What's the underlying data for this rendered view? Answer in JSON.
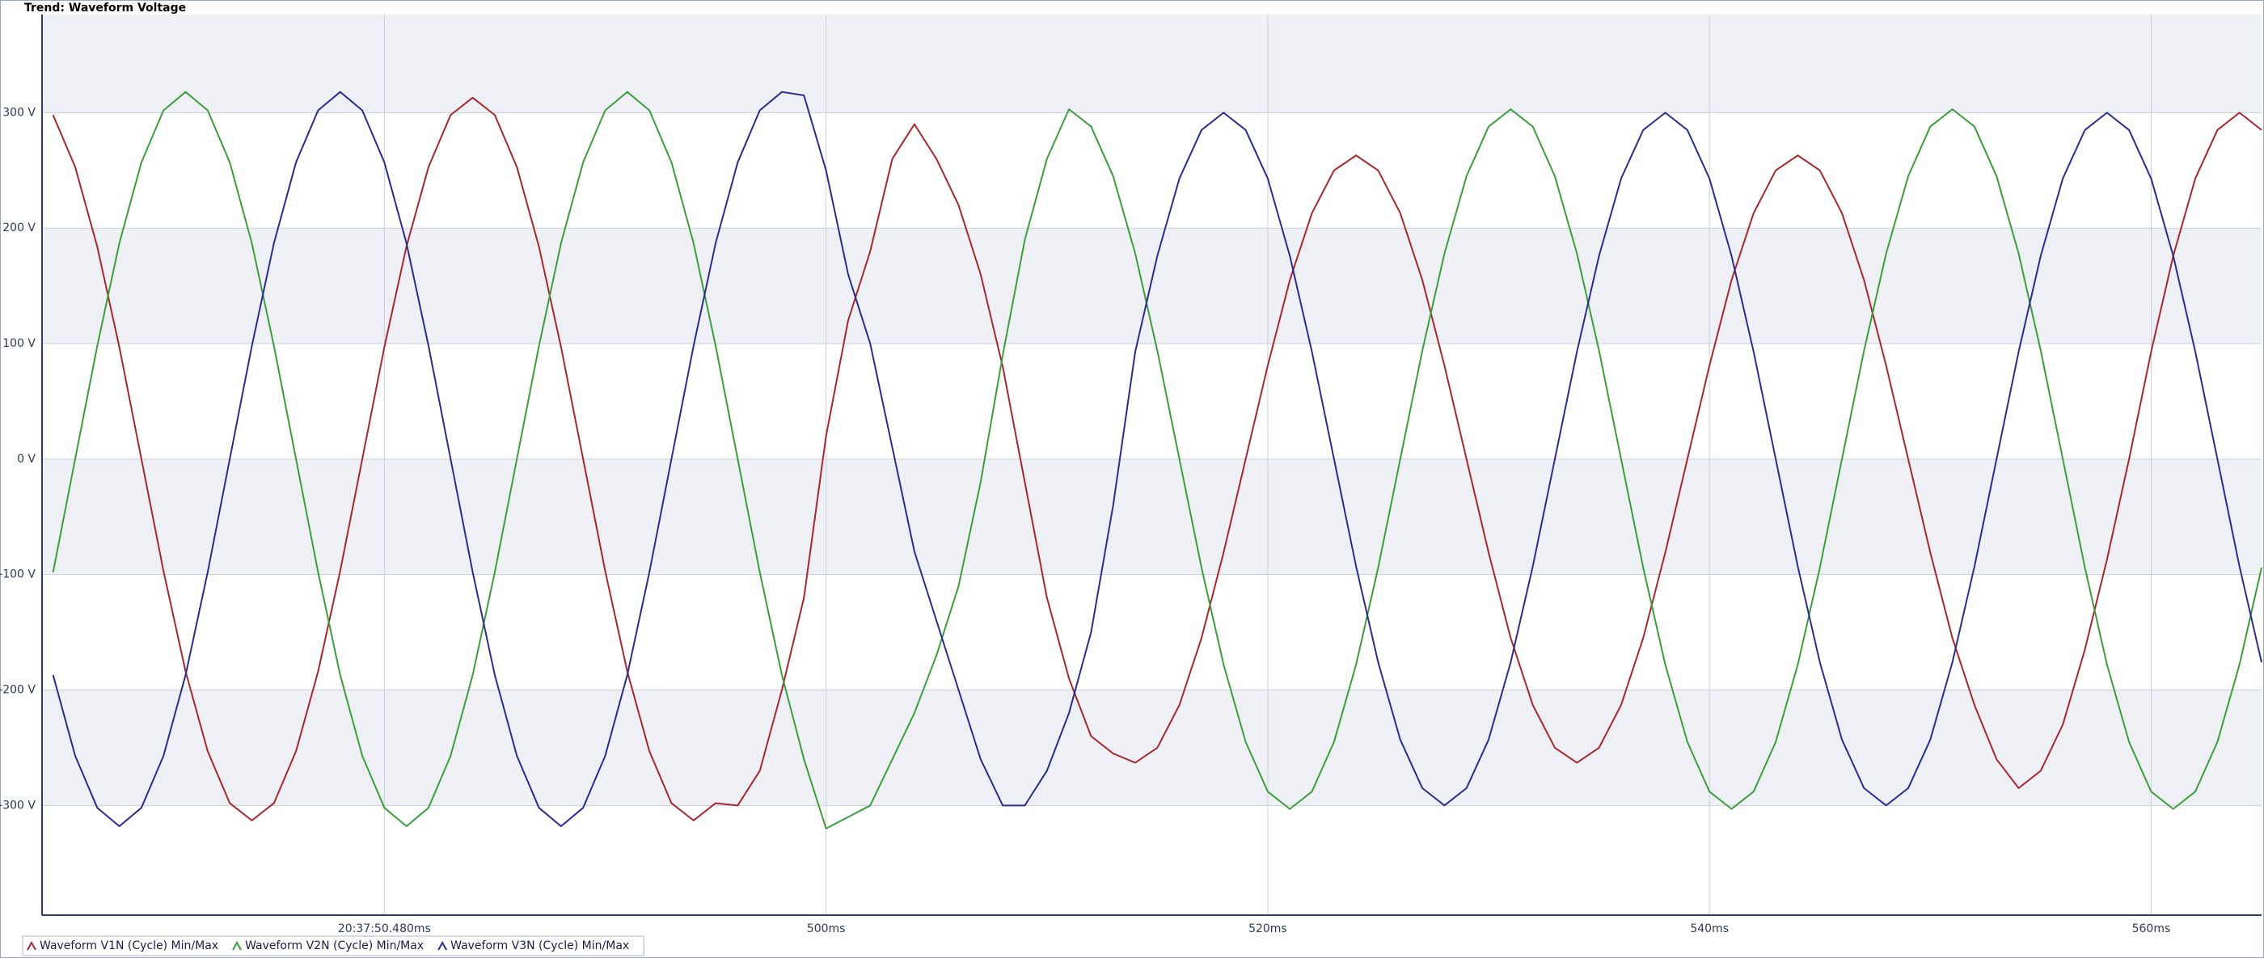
{
  "chart_data": {
    "type": "line",
    "title": "Trend: Waveform Voltage",
    "x": [
      465,
      466,
      467,
      468,
      469,
      470,
      471,
      472,
      473,
      474,
      475,
      476,
      477,
      478,
      479,
      480,
      481,
      482,
      483,
      484,
      485,
      486,
      487,
      488,
      489,
      490,
      491,
      492,
      493,
      494,
      495,
      496,
      497,
      498,
      499,
      500,
      501,
      502,
      503,
      504,
      505,
      506,
      507,
      508,
      509,
      510,
      511,
      512,
      513,
      514,
      515,
      516,
      517,
      518,
      519,
      520,
      521,
      522,
      523,
      524,
      525,
      526,
      527,
      528,
      529,
      530,
      531,
      532,
      533,
      534,
      535,
      536,
      537,
      538,
      539,
      540,
      541,
      542,
      543,
      544,
      545,
      546,
      547,
      548,
      549,
      550,
      551,
      552,
      553,
      554,
      555,
      556,
      557,
      558,
      559,
      560,
      561,
      562,
      563,
      564,
      565
    ],
    "series": [
      {
        "name": "Waveform V1N (Cycle) Min/Max",
        "color": "#a8262e",
        "values": [
          298,
          253,
          184,
          97,
          0,
          -97,
          -184,
          -253,
          -298,
          -313,
          -298,
          -253,
          -184,
          -97,
          0,
          97,
          184,
          253,
          298,
          313,
          298,
          253,
          184,
          97,
          0,
          -97,
          -184,
          -253,
          -298,
          -313,
          -298,
          -300,
          -270,
          -200,
          -120,
          20,
          120,
          180,
          260,
          290,
          260,
          220,
          160,
          80,
          -20,
          -120,
          -190,
          -240,
          -255,
          -263,
          -250,
          -213,
          -155,
          -81,
          0,
          81,
          155,
          213,
          250,
          263,
          250,
          213,
          155,
          81,
          0,
          -81,
          -155,
          -213,
          -250,
          -263,
          -250,
          -213,
          -155,
          -81,
          0,
          81,
          155,
          213,
          250,
          263,
          250,
          213,
          155,
          81,
          0,
          -81,
          -155,
          -213,
          -260,
          -285,
          -270,
          -230,
          -165,
          -87,
          0,
          93,
          176,
          243,
          285,
          300,
          285
        ]
      },
      {
        "name": "Waveform V2N (Cycle) Min/Max",
        "color": "#3b9e3b",
        "values": [
          -98,
          0,
          98,
          187,
          257,
          302,
          318,
          302,
          257,
          187,
          98,
          0,
          -98,
          -187,
          -257,
          -302,
          -318,
          -302,
          -257,
          -187,
          -98,
          0,
          98,
          187,
          257,
          302,
          318,
          302,
          257,
          187,
          98,
          0,
          -98,
          -187,
          -260,
          -320,
          -310,
          -300,
          -260,
          -220,
          -170,
          -110,
          -20,
          90,
          190,
          260,
          303,
          288,
          245,
          178,
          94,
          0,
          -94,
          -178,
          -245,
          -288,
          -303,
          -288,
          -245,
          -178,
          -94,
          0,
          94,
          178,
          245,
          288,
          303,
          288,
          245,
          178,
          94,
          0,
          -94,
          -178,
          -245,
          -288,
          -303,
          -288,
          -245,
          -178,
          -94,
          0,
          94,
          178,
          245,
          288,
          303,
          288,
          245,
          178,
          94,
          0,
          -94,
          -178,
          -245,
          -288,
          -303,
          -288,
          -245,
          -178,
          -94
        ]
      },
      {
        "name": "Waveform V3N (Cycle) Min/Max",
        "color": "#2b2c8f",
        "values": [
          -187,
          -257,
          -302,
          -318,
          -302,
          -257,
          -187,
          -98,
          0,
          98,
          187,
          257,
          302,
          318,
          302,
          257,
          187,
          98,
          0,
          -98,
          -187,
          -257,
          -302,
          -318,
          -302,
          -257,
          -187,
          -98,
          0,
          98,
          187,
          257,
          302,
          318,
          315,
          250,
          160,
          100,
          10,
          -80,
          -140,
          -200,
          -260,
          -300,
          -300,
          -270,
          -220,
          -150,
          -40,
          93,
          176,
          243,
          285,
          300,
          285,
          243,
          176,
          93,
          0,
          -93,
          -176,
          -243,
          -285,
          -300,
          -285,
          -243,
          -176,
          -93,
          0,
          93,
          176,
          243,
          285,
          300,
          285,
          243,
          176,
          93,
          0,
          -93,
          -176,
          -243,
          -285,
          -300,
          -285,
          -243,
          -176,
          -93,
          0,
          93,
          176,
          243,
          285,
          300,
          285,
          243,
          176,
          93,
          0,
          -93,
          -176
        ]
      }
    ],
    "xlim": [
      464.5,
      565
    ],
    "xticks": [
      {
        "value": 480,
        "label": "20:37:50.480ms"
      },
      {
        "value": 500,
        "label": "500ms"
      },
      {
        "value": 520,
        "label": "520ms"
      },
      {
        "value": 540,
        "label": "540ms"
      },
      {
        "value": 560,
        "label": "560ms"
      }
    ],
    "ylim": [
      -395,
      385
    ],
    "yticks": [
      {
        "value": -300,
        "label": "-300 V"
      },
      {
        "value": -200,
        "label": "-200 V"
      },
      {
        "value": -100,
        "label": "-100 V"
      },
      {
        "value": 0,
        "label": "0 V"
      },
      {
        "value": 100,
        "label": "100 V"
      },
      {
        "value": 200,
        "label": "200 V"
      },
      {
        "value": 300,
        "label": "300 V"
      }
    ],
    "grid": true,
    "legend": "bottom-left"
  }
}
